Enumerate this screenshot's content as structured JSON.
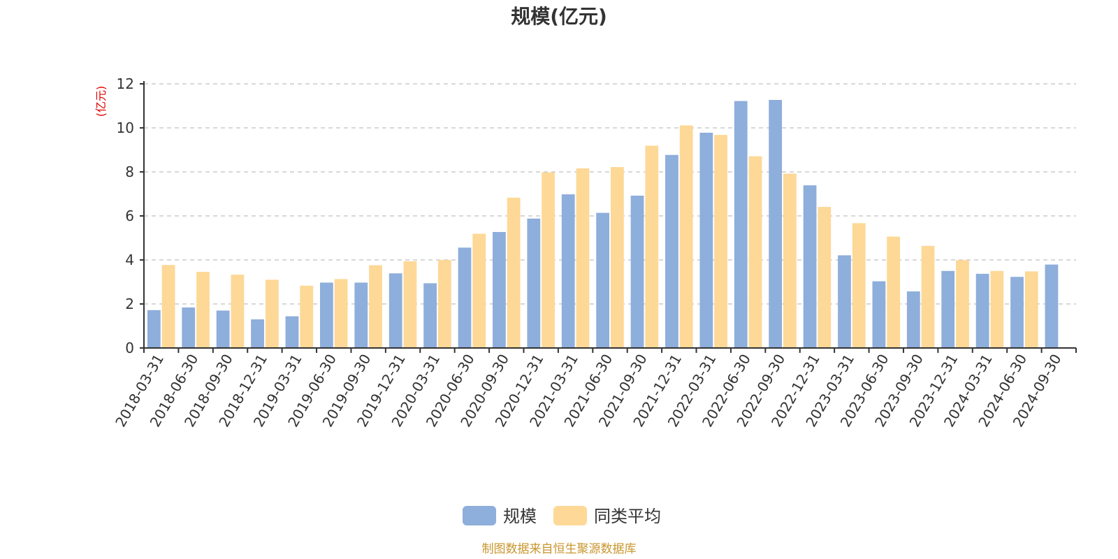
{
  "chart_data": {
    "type": "bar",
    "title": "规模(亿元)",
    "ylabel": "(亿元)",
    "xlabel": "",
    "ylim": [
      0,
      12
    ],
    "yticks": [
      0,
      2,
      4,
      6,
      8,
      10,
      12
    ],
    "grid": true,
    "legend_position": "bottom-center",
    "source": "制图数据来自恒生聚源数据库",
    "categories": [
      "2018-03-31",
      "2018-06-30",
      "2018-09-30",
      "2018-12-31",
      "2019-03-31",
      "2019-06-30",
      "2019-09-30",
      "2019-12-31",
      "2020-03-31",
      "2020-06-30",
      "2020-09-30",
      "2020-12-31",
      "2021-03-31",
      "2021-06-30",
      "2021-09-30",
      "2021-12-31",
      "2022-03-31",
      "2022-06-30",
      "2022-09-30",
      "2022-12-31",
      "2023-03-31",
      "2023-06-30",
      "2023-09-30",
      "2023-12-31",
      "2024-03-31",
      "2024-06-30",
      "2024-09-30"
    ],
    "series": [
      {
        "name": "规模",
        "color": "#8eaedb",
        "values": [
          1.72,
          1.84,
          1.7,
          1.3,
          1.44,
          2.97,
          2.97,
          3.39,
          2.94,
          4.56,
          5.27,
          5.88,
          6.98,
          6.14,
          6.92,
          8.77,
          9.78,
          11.22,
          11.27,
          7.39,
          4.21,
          3.03,
          2.57,
          3.5,
          3.37,
          3.23,
          3.79
        ]
      },
      {
        "name": "同类平均",
        "color": "#fdd897",
        "values": [
          3.77,
          3.46,
          3.33,
          3.1,
          2.83,
          3.13,
          3.76,
          3.94,
          4.0,
          5.19,
          6.83,
          7.98,
          8.16,
          8.22,
          9.19,
          10.11,
          9.68,
          8.71,
          7.92,
          6.41,
          5.67,
          5.06,
          4.64,
          3.99,
          3.5,
          3.48,
          null
        ]
      }
    ]
  }
}
